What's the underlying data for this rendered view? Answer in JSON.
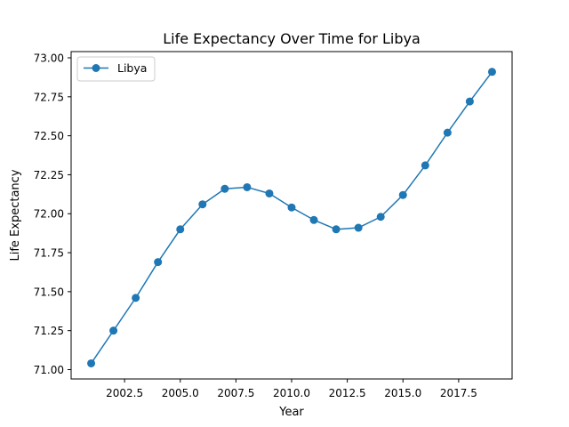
{
  "chart_data": {
    "type": "line",
    "title": "Life Expectancy Over Time for Libya",
    "xlabel": "Year",
    "ylabel": "Life Expectancy",
    "xlim": [
      2000.1,
      2019.9
    ],
    "ylim": [
      70.94,
      73.04
    ],
    "x_ticks": [
      2002.5,
      2005.0,
      2007.5,
      2010.0,
      2012.5,
      2015.0,
      2017.5
    ],
    "x_tick_labels": [
      "2002.5",
      "2005.0",
      "2007.5",
      "2010.0",
      "2012.5",
      "2015.0",
      "2017.5"
    ],
    "y_ticks": [
      71.0,
      71.25,
      71.5,
      71.75,
      72.0,
      72.25,
      72.5,
      72.75,
      73.0
    ],
    "y_tick_labels": [
      "71.00",
      "71.25",
      "71.50",
      "71.75",
      "72.00",
      "72.25",
      "72.50",
      "72.75",
      "73.00"
    ],
    "grid": false,
    "legend_position": "top-left",
    "series": [
      {
        "name": "Libya",
        "color": "#1f77b4",
        "marker": "circle",
        "x": [
          2001,
          2002,
          2003,
          2004,
          2005,
          2006,
          2007,
          2008,
          2009,
          2010,
          2011,
          2012,
          2013,
          2014,
          2015,
          2016,
          2017,
          2018,
          2019
        ],
        "y": [
          71.04,
          71.25,
          71.46,
          71.69,
          71.9,
          72.06,
          72.16,
          72.17,
          72.13,
          72.04,
          71.96,
          71.9,
          71.91,
          71.98,
          72.12,
          72.31,
          72.52,
          72.72,
          72.91
        ]
      }
    ]
  }
}
